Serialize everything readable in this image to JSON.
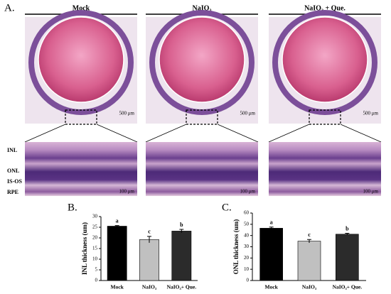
{
  "figure": {
    "panel_a": "A.",
    "columns": [
      "Mock",
      "NaIO₃",
      "NaIO₃ + Que."
    ],
    "overview_scale": "500 μm",
    "detail_scale": "100 μm",
    "layers": [
      "INL",
      "ONL",
      "IS-OS",
      "RPE"
    ]
  },
  "chart_data": [
    {
      "type": "bar",
      "panel": "B.",
      "ylabel": "INL thickness (um)",
      "categories": [
        "Mock",
        "NaIO₃",
        "NaIO₃+ Que."
      ],
      "values": [
        25.5,
        19.2,
        23.2
      ],
      "errors": [
        0.3,
        1.5,
        0.8
      ],
      "annotations": [
        "a",
        "c",
        "b"
      ],
      "colors": [
        "#000000",
        "#c0c0c0",
        "#2b2b2b"
      ],
      "ylim": [
        0,
        30
      ],
      "yticks": [
        0,
        5,
        10,
        15,
        20,
        25,
        30
      ]
    },
    {
      "type": "bar",
      "panel": "C.",
      "ylabel": "ONL thickness (um)",
      "categories": [
        "Mock",
        "NaIO₃",
        "NaIO₃+ Que."
      ],
      "values": [
        46.5,
        35,
        41.2
      ],
      "errors": [
        1,
        1.5,
        0.8
      ],
      "annotations": [
        "a",
        "c",
        "b"
      ],
      "colors": [
        "#000000",
        "#c0c0c0",
        "#2b2b2b"
      ],
      "ylim": [
        0,
        60
      ],
      "yticks": [
        0,
        10,
        20,
        30,
        40,
        50,
        60
      ]
    }
  ]
}
